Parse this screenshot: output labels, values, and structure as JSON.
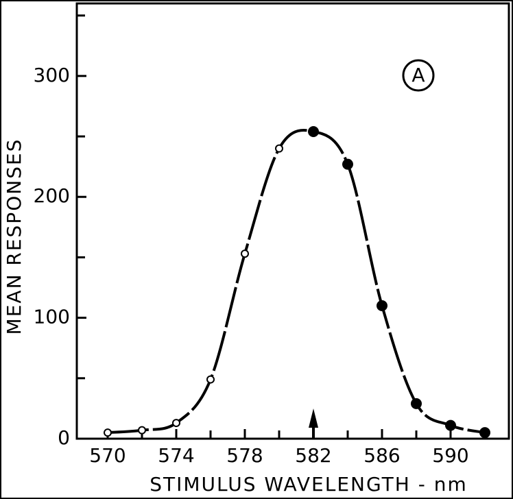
{
  "chart_data": {
    "type": "line",
    "x_label": "STIMULUS WAVELENGTH - nm",
    "y_label": "MEAN RESPONSES",
    "annotation": "A",
    "arrow_x": 582,
    "x": [
      570,
      572,
      574,
      576,
      578,
      580,
      582,
      584,
      586,
      588,
      590,
      592
    ],
    "values": [
      5,
      7,
      13,
      49,
      153,
      240,
      254,
      227,
      110,
      29,
      11,
      5
    ],
    "filled": [
      false,
      false,
      false,
      false,
      false,
      false,
      true,
      true,
      true,
      true,
      true,
      true
    ],
    "color": "#000000",
    "xlim": [
      568.2,
      593.4
    ],
    "ylim": [
      0,
      360
    ],
    "xticks": [
      570,
      574,
      578,
      582,
      586,
      590
    ],
    "yticks": [
      0,
      100,
      200,
      300
    ],
    "xminor_ticks": [
      572,
      576,
      580,
      584,
      588,
      592
    ],
    "yminor_ticks": [
      50,
      150,
      250,
      350
    ],
    "grid": false
  }
}
